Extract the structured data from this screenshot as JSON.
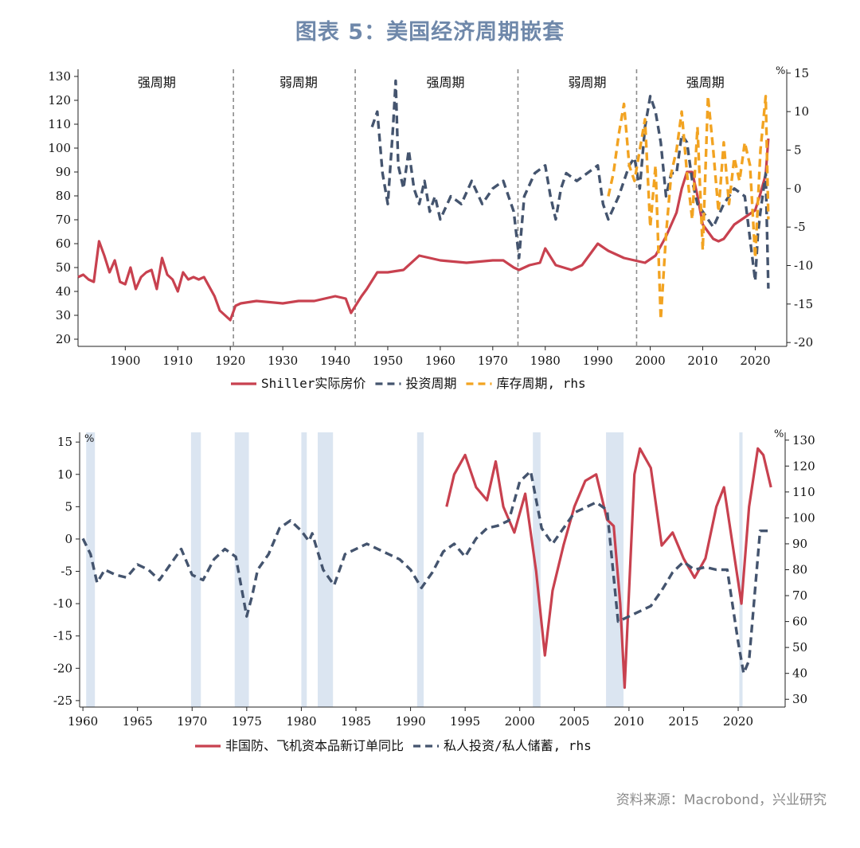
{
  "title": "图表 5：美国经济周期嵌套",
  "source": "资料来源：Macrobond，兴业研究",
  "colors": {
    "red": "#c8414f",
    "navy": "#44546e",
    "orange": "#f2a321",
    "shade": "#dbe5f1",
    "divider": "#8c8c8c"
  },
  "chart_data": [
    {
      "type": "line",
      "x_ticks": [
        1900,
        1910,
        1920,
        1930,
        1940,
        1950,
        1960,
        1970,
        1980,
        1990,
        2000,
        2010,
        2020
      ],
      "xlim": [
        1891,
        2026
      ],
      "y_left": {
        "ticks": [
          20,
          30,
          40,
          50,
          60,
          70,
          80,
          90,
          100,
          110,
          120,
          130
        ],
        "lim": [
          17,
          133
        ]
      },
      "y_right": {
        "ticks": [
          15,
          10,
          5,
          0,
          -5,
          -10,
          -15,
          -20
        ],
        "lim": [
          -20.5,
          15.5
        ],
        "unit": "%"
      },
      "cycle_dividers": [
        1920.6,
        1943.8,
        1974.8,
        1997.4
      ],
      "cycle_labels": [
        {
          "text": "强周期",
          "x": 1906
        },
        {
          "text": "弱周期",
          "x": 1933
        },
        {
          "text": "强周期",
          "x": 1961
        },
        {
          "text": "弱周期",
          "x": 1988
        },
        {
          "text": "强周期",
          "x": 2010.5
        }
      ],
      "legend": [
        "Shiller实际房价",
        "投资周期",
        "库存周期, rhs"
      ],
      "series": [
        {
          "name": "Shiller实际房价",
          "axis": "left",
          "style": "solid",
          "color": "#c8414f",
          "x": [
            1891,
            1892,
            1893,
            1894,
            1895,
            1896,
            1897,
            1898,
            1899,
            1900,
            1901,
            1902,
            1903,
            1904,
            1905,
            1906,
            1907,
            1908,
            1909,
            1910,
            1911,
            1912,
            1913,
            1914,
            1915,
            1916,
            1917,
            1918,
            1919,
            1920,
            1921,
            1922,
            1925,
            1930,
            1933,
            1936,
            1940,
            1942,
            1943,
            1945,
            1946,
            1948,
            1950,
            1953,
            1956,
            1960,
            1965,
            1970,
            1972,
            1974,
            1975,
            1977,
            1979,
            1980,
            1982,
            1985,
            1987,
            1989,
            1990,
            1992,
            1995,
            1997,
            1999,
            2001,
            2003,
            2005,
            2006,
            2007,
            2008,
            2009,
            2010,
            2011,
            2012,
            2013,
            2014,
            2016,
            2018,
            2020,
            2021,
            2022,
            2022.5
          ],
          "y": [
            46,
            47,
            45,
            44,
            61,
            55,
            48,
            53,
            44,
            43,
            50,
            41,
            46,
            48,
            49,
            41,
            54,
            47,
            45,
            40,
            48,
            45,
            46,
            45,
            46,
            42,
            38,
            32,
            30,
            28,
            34,
            35,
            36,
            35,
            36,
            36,
            38,
            37,
            31,
            38,
            41,
            48,
            48,
            49,
            55,
            53,
            52,
            53,
            53,
            50,
            49,
            51,
            52,
            58,
            51,
            49,
            51,
            57,
            60,
            57,
            54,
            53,
            52,
            55,
            63,
            73,
            83,
            90,
            90,
            80,
            68,
            65,
            62,
            61,
            62,
            68,
            71,
            74,
            81,
            89,
            104
          ]
        },
        {
          "name": "投资周期",
          "axis": "right",
          "style": "dash",
          "color": "#44546e",
          "x": [
            1947,
            1948,
            1949,
            1950,
            1951,
            1951.5,
            1952,
            1953,
            1954,
            1955,
            1956,
            1957,
            1958,
            1959,
            1960,
            1962,
            1964,
            1966,
            1968,
            1970,
            1972,
            1974,
            1975,
            1976,
            1978,
            1980,
            1981,
            1982,
            1983,
            1984,
            1986,
            1988,
            1990,
            1991,
            1992,
            1994,
            1996,
            1997,
            1998,
            1999,
            2000,
            2001,
            2002,
            2003,
            2004,
            2005,
            2006,
            2007,
            2008,
            2009,
            2010,
            2012,
            2014,
            2016,
            2018,
            2020,
            2020.5,
            2021,
            2022,
            2022.5
          ],
          "x_note": "",
          "y": [
            8,
            10,
            2,
            -2,
            8,
            14,
            3,
            0,
            5,
            0,
            -2,
            1,
            -3,
            -1,
            -4,
            -1,
            -2,
            1,
            -2,
            0,
            1,
            -3,
            -9,
            -1,
            2,
            3,
            -1,
            -4,
            0,
            2,
            1,
            2,
            3,
            -2,
            -4,
            -1,
            3,
            4,
            0,
            8,
            12,
            10,
            6,
            -1,
            2,
            2,
            7,
            6,
            1,
            -2,
            -3,
            -5,
            -2,
            0,
            -1,
            -12,
            -6,
            -3,
            2,
            -13
          ]
        },
        {
          "name": "库存周期, rhs",
          "axis": "right",
          "style": "dash",
          "color": "#f2a321",
          "x": [
            1992,
            1993,
            1994,
            1995,
            1996,
            1997,
            1998,
            1999,
            2000,
            2001,
            2002,
            2003,
            2004,
            2005,
            2006,
            2007,
            2008,
            2009,
            2010,
            2011,
            2012,
            2013,
            2014,
            2015,
            2016,
            2017,
            2018,
            2019,
            2020,
            2021,
            2022,
            2022.5
          ],
          "y": [
            -1,
            2,
            7,
            11,
            3,
            1,
            5,
            9,
            -5,
            3,
            -17,
            -6,
            2,
            5,
            10,
            2,
            -4,
            8,
            -8,
            12,
            5,
            -3,
            6,
            -2,
            4,
            1,
            6,
            3,
            -9,
            5,
            12,
            -4
          ]
        }
      ]
    },
    {
      "type": "line",
      "x_ticks": [
        1960,
        1965,
        1970,
        1975,
        1980,
        1985,
        1990,
        1995,
        2000,
        2005,
        2010,
        2015,
        2020
      ],
      "xlim": [
        1959.7,
        2024.3
      ],
      "y_left": {
        "ticks": [
          15,
          10,
          5,
          0,
          -5,
          -10,
          -15,
          -20,
          -25
        ],
        "lim": [
          -26,
          16.5
        ],
        "unit": "%"
      },
      "y_right": {
        "ticks": [
          130,
          120,
          110,
          100,
          90,
          80,
          70,
          60,
          50,
          40,
          30
        ],
        "lim": [
          27,
          133
        ],
        "unit": "%"
      },
      "recessions": [
        [
          1960.3,
          1961.1
        ],
        [
          1969.9,
          1970.8
        ],
        [
          1973.9,
          1975.2
        ],
        [
          1980.0,
          1980.5
        ],
        [
          1981.5,
          1982.9
        ],
        [
          1990.6,
          1991.2
        ],
        [
          2001.2,
          2001.9
        ],
        [
          2007.9,
          2009.5
        ],
        [
          2020.1,
          2020.4
        ]
      ],
      "legend": [
        "非国防、飞机资本品新订单同比",
        "私人投资/私人储蓄, rhs"
      ],
      "series": [
        {
          "name": "非国防、飞机资本品新订单同比",
          "axis": "left",
          "style": "solid",
          "color": "#c8414f",
          "x": [
            1993.3,
            1994,
            1995,
            1996,
            1997,
            1997.8,
            1998.5,
            1999.5,
            2000.5,
            2001.5,
            2002.3,
            2003,
            2004,
            2005,
            2006,
            2007,
            2008,
            2008.6,
            2009.2,
            2009.6,
            2010.5,
            2011,
            2012,
            2013,
            2014,
            2015,
            2016,
            2017,
            2018,
            2018.7,
            2019.5,
            2020.3,
            2021,
            2021.8,
            2022.3,
            2023
          ],
          "y": [
            5,
            10,
            13,
            8,
            6,
            12,
            5,
            1,
            7,
            -5,
            -18,
            -8,
            -1,
            5,
            9,
            10,
            3,
            2,
            -10,
            -23,
            10,
            14,
            11,
            -1,
            1,
            -3,
            -6,
            -3,
            5,
            8,
            -1,
            -10,
            5,
            14,
            13,
            8
          ]
        },
        {
          "name": "私人投资/私人储蓄, rhs",
          "axis": "right",
          "style": "dash",
          "color": "#44546e",
          "x": [
            1960,
            1960.7,
            1961.3,
            1962,
            1963,
            1964,
            1965,
            1966,
            1967,
            1968,
            1969,
            1970,
            1971,
            1972,
            1973,
            1974,
            1975,
            1975.5,
            1976,
            1977,
            1978,
            1979,
            1980,
            1980.7,
            1981,
            1982,
            1983,
            1984,
            1985,
            1986,
            1987,
            1988,
            1989,
            1990,
            1991,
            1992,
            1993,
            1994,
            1995,
            1996,
            1997,
            1998,
            1999,
            2000,
            2001,
            2002,
            2003,
            2004,
            2005,
            2006,
            2007,
            2008,
            2009,
            2010,
            2011,
            2012,
            2013,
            2014,
            2015,
            2016,
            2017,
            2018,
            2019,
            2020,
            2020.5,
            2021,
            2022,
            2022.7
          ],
          "y": [
            92,
            86,
            75,
            80,
            78,
            77,
            82,
            80,
            76,
            82,
            88,
            78,
            76,
            84,
            88,
            85,
            62,
            70,
            80,
            86,
            96,
            99,
            95,
            91,
            94,
            80,
            74,
            86,
            88,
            90,
            88,
            86,
            84,
            80,
            73,
            79,
            87,
            90,
            85,
            92,
            96,
            97,
            99,
            114,
            118,
            96,
            90,
            96,
            102,
            104,
            106,
            103,
            60,
            62,
            64,
            66,
            72,
            79,
            83,
            80,
            81,
            80,
            80,
            52,
            40,
            45,
            95,
            95
          ]
        }
      ]
    }
  ]
}
